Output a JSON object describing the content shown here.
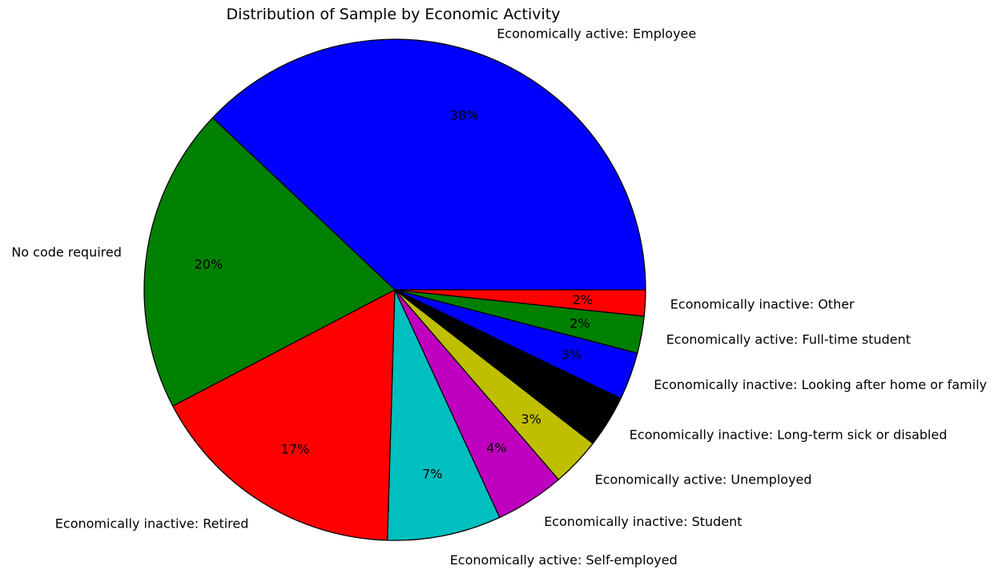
{
  "chart_data": {
    "type": "pie",
    "title": "Distribution of Sample by Economic Activity",
    "start_angle_deg": 0,
    "direction": "counterclockwise",
    "slices": [
      {
        "label": "Economically active: Employee",
        "value": 38.3,
        "pct_label": "38%",
        "color": "#0000ff"
      },
      {
        "label": "No code required",
        "value": 19.9,
        "pct_label": "20%",
        "color": "#008000"
      },
      {
        "label": "Economically inactive: Retired",
        "value": 17.0,
        "pct_label": "17%",
        "color": "#ff0000"
      },
      {
        "label": "Economically active: Self-employed",
        "value": 7.4,
        "pct_label": "7%",
        "color": "#00bfbf"
      },
      {
        "label": "Economically inactive: Student",
        "value": 4.5,
        "pct_label": "4%",
        "color": "#bf00bf"
      },
      {
        "label": "Economically active: Unemployed",
        "value": 3.2,
        "pct_label": "3%",
        "color": "#bfbf00"
      },
      {
        "label": "Economically inactive: Long-term sick or disabled",
        "value": 3.4,
        "pct_label": "3%",
        "color": "#000000"
      },
      {
        "label": "Economically inactive: Looking after home or family",
        "value": 3.1,
        "pct_label": "3%",
        "color": "#0000ff"
      },
      {
        "label": "Economically active: Full-time student",
        "value": 2.4,
        "pct_label": "2%",
        "color": "#008000"
      },
      {
        "label": "Economically inactive: Other",
        "value": 1.7,
        "pct_label": "2%",
        "color": "#ff0000"
      }
    ]
  }
}
